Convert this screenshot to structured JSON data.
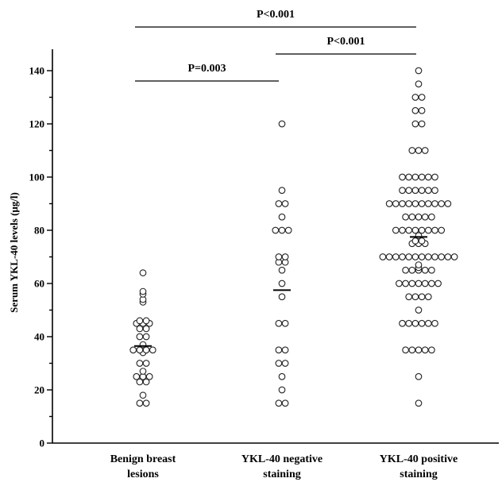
{
  "chart_data": {
    "type": "scatter",
    "title": "",
    "ylabel": "Serum YKL-40 levels (μg/l)",
    "xlabel": "",
    "ylim": [
      0,
      145
    ],
    "yticks": [
      0,
      20,
      40,
      60,
      80,
      100,
      120,
      140
    ],
    "grid": false,
    "categories": [
      [
        "Benign breast",
        "lesions"
      ],
      [
        "YKL-40 negative",
        "staining"
      ],
      [
        "YKL-40 positive",
        "staining"
      ]
    ],
    "series": [
      {
        "values": [
          64,
          57,
          56,
          54,
          53,
          46,
          46,
          45,
          45,
          45,
          43,
          43,
          40,
          40,
          37,
          35,
          35,
          35,
          35,
          34,
          30,
          30,
          27,
          25,
          25,
          25,
          23,
          23,
          18,
          15,
          15
        ],
        "mean": 36.5
      },
      {
        "values": [
          120,
          95,
          90,
          90,
          85,
          80,
          80,
          80,
          70,
          70,
          68,
          68,
          65,
          60,
          55,
          45,
          45,
          35,
          35,
          30,
          30,
          25,
          20,
          15,
          15
        ],
        "mean": 57.5
      },
      {
        "values": [
          140,
          135,
          130,
          130,
          125,
          125,
          120,
          120,
          110,
          110,
          110,
          100,
          100,
          100,
          100,
          100,
          100,
          95,
          95,
          95,
          95,
          95,
          95,
          90,
          90,
          90,
          90,
          90,
          90,
          90,
          90,
          90,
          90,
          85,
          85,
          85,
          85,
          85,
          80,
          80,
          80,
          80,
          80,
          80,
          80,
          80,
          78,
          76,
          76,
          75,
          75,
          75,
          70,
          70,
          70,
          70,
          70,
          70,
          70,
          70,
          70,
          70,
          70,
          70,
          67,
          66,
          65,
          65,
          65,
          65,
          65,
          60,
          60,
          60,
          60,
          60,
          60,
          60,
          55,
          55,
          55,
          55,
          50,
          45,
          45,
          45,
          45,
          45,
          45,
          35,
          35,
          35,
          35,
          35,
          25,
          15
        ],
        "mean": 77.5
      }
    ],
    "comparisons": [
      {
        "from": 0,
        "to": 1,
        "label": "P=0.003"
      },
      {
        "from": 1,
        "to": 2,
        "label": "P<0.001"
      },
      {
        "from": 0,
        "to": 2,
        "label": "P<0.001"
      }
    ]
  }
}
